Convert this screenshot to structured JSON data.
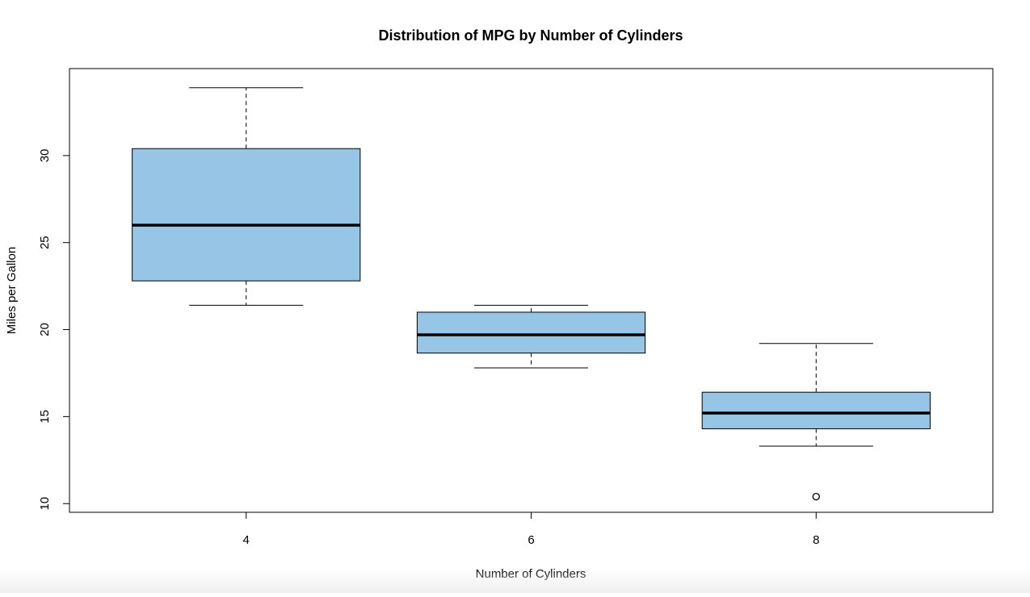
{
  "chart_data": {
    "type": "boxplot",
    "title": "Distribution of MPG by Number of Cylinders",
    "xlabel": "Number of Cylinders",
    "ylabel": "Miles per Gallon",
    "categories": [
      "4",
      "6",
      "8"
    ],
    "y_ticks": [
      "10",
      "15",
      "20",
      "25",
      "30"
    ],
    "ylim": [
      9.5,
      35.0
    ],
    "box_color": "#97C5E6",
    "grid": false,
    "legend": "none",
    "boxes": [
      {
        "category": "4",
        "whisker_low": 21.4,
        "q1": 22.8,
        "median": 26.0,
        "q3": 30.4,
        "whisker_high": 33.9,
        "outliers": []
      },
      {
        "category": "6",
        "whisker_low": 17.8,
        "q1": 18.65,
        "median": 19.7,
        "q3": 21.0,
        "whisker_high": 21.4,
        "outliers": []
      },
      {
        "category": "8",
        "whisker_low": 13.3,
        "q1": 14.3,
        "median": 15.2,
        "q3": 16.4,
        "whisker_high": 19.2,
        "outliers": [
          10.4
        ]
      }
    ]
  }
}
